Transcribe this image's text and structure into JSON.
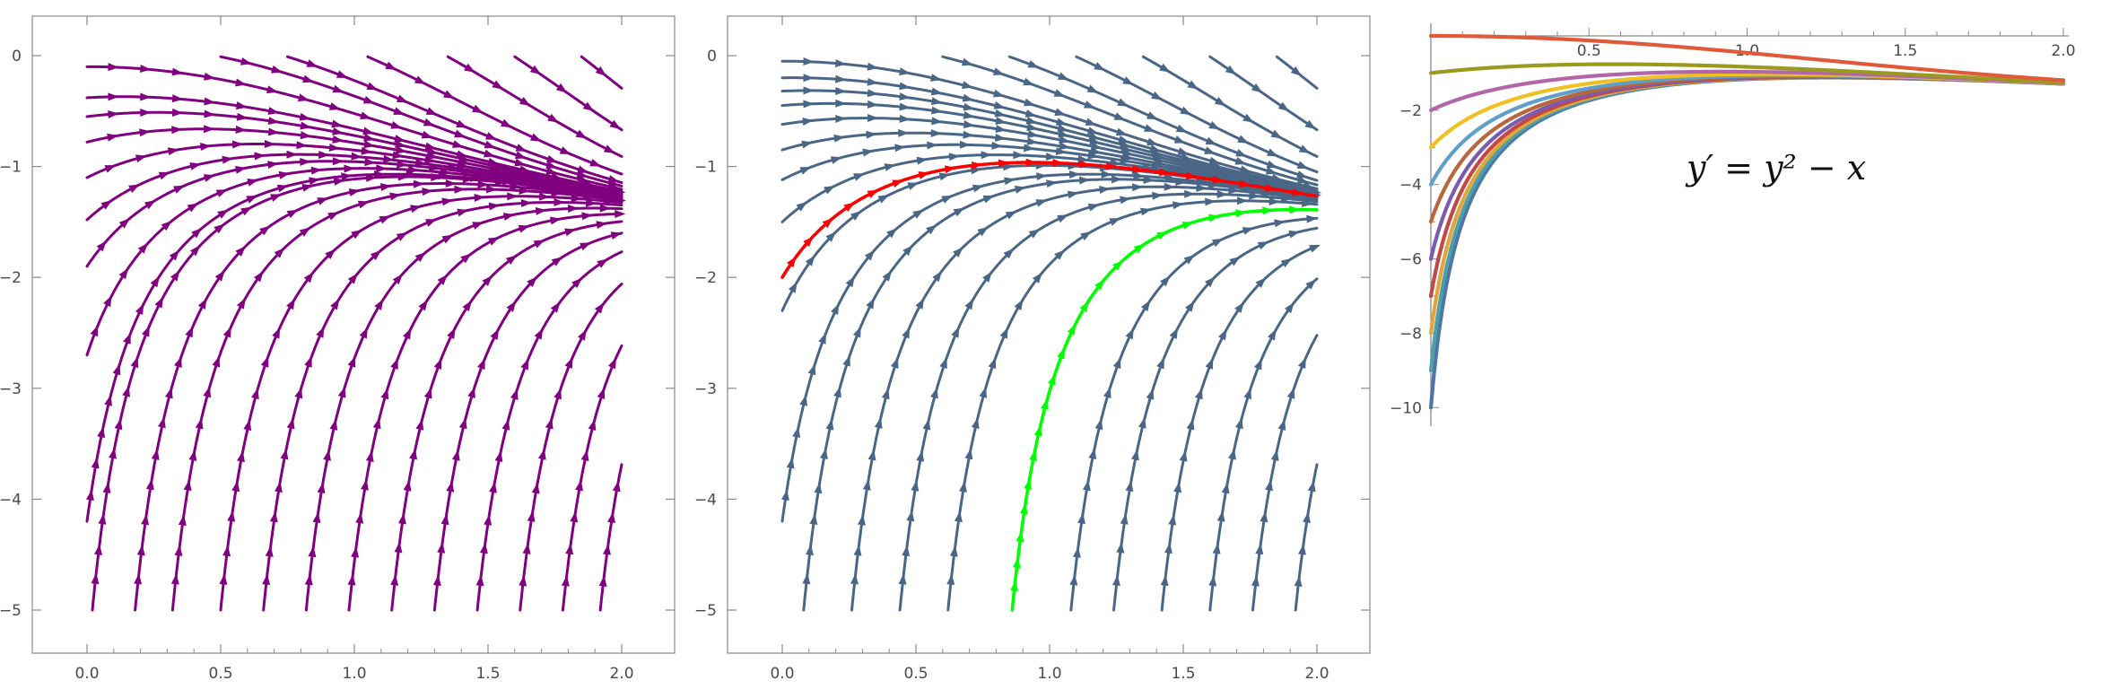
{
  "chart_data": [
    {
      "type": "streamplot",
      "equation": "y' = y^2 - x",
      "xlim": [
        0,
        2
      ],
      "ylim": [
        -5,
        0
      ],
      "x_ticks": [
        "0.0",
        "0.5",
        "1.0",
        "1.5",
        "2.0"
      ],
      "y_ticks": [
        "0",
        "-1",
        "-2",
        "-3",
        "-4",
        "-5"
      ],
      "frame": "boxed",
      "stream_color": "#800080",
      "stream_starts": {
        "left_edge_y0": [
          -0.1,
          -0.38,
          -0.55,
          -0.78,
          -1.1,
          -1.48,
          -1.9,
          -2.7,
          -4.2
        ],
        "bottom_edge_x0": [
          0.02,
          0.18,
          0.32,
          0.5,
          0.66,
          0.82,
          0.98,
          1.14,
          1.3,
          1.46,
          1.62,
          1.78,
          1.92,
          2.0
        ],
        "top_edge_x0": [
          0.5,
          0.75,
          1.05,
          1.35,
          1.6,
          1.85
        ]
      }
    },
    {
      "type": "streamplot",
      "equation": "y' = y^2 - x",
      "xlim": [
        0,
        2
      ],
      "ylim": [
        -5,
        0
      ],
      "x_ticks": [
        "0.0",
        "0.5",
        "1.0",
        "1.5",
        "2.0"
      ],
      "y_ticks": [
        "0",
        "-1",
        "-2",
        "-3",
        "-4",
        "-5"
      ],
      "frame": "boxed",
      "stream_color": "#4a6687",
      "stream_starts": {
        "left_edge_y0": [
          -0.05,
          -0.2,
          -0.32,
          -0.45,
          -0.62,
          -0.85,
          -1.12,
          -1.5,
          -2.3,
          -4.2
        ],
        "bottom_edge_x0": [
          0.08,
          0.26,
          0.44,
          0.62,
          1.08,
          1.24,
          1.42,
          1.6,
          1.76,
          1.92,
          2.0
        ],
        "top_edge_x0": [
          0.6,
          0.85,
          1.1,
          1.35,
          1.6,
          1.85
        ]
      },
      "highlighted_solutions": [
        {
          "color": "#ff0000",
          "x0": 0,
          "y0": -2
        },
        {
          "color": "#00ff00",
          "x0": 0.86,
          "y0": -5
        }
      ]
    },
    {
      "type": "line",
      "equation": "y' = y^2 - x",
      "xlim": [
        0,
        2
      ],
      "ylim": [
        -10.5,
        0
      ],
      "x_ticks": [
        "0.5",
        "1.0",
        "1.5",
        "2.0"
      ],
      "y_ticks": [
        "-2",
        "-4",
        "-6",
        "-8",
        "-10"
      ],
      "frame": "axes-origin",
      "series": [
        {
          "y0": 0,
          "color": "#e05a3a"
        },
        {
          "y0": -1,
          "color": "#9a9a1e"
        },
        {
          "y0": -2,
          "color": "#b066a8"
        },
        {
          "y0": -3,
          "color": "#f0c020"
        },
        {
          "y0": -4,
          "color": "#5f9fc9"
        },
        {
          "y0": -5,
          "color": "#b8663a"
        },
        {
          "y0": -6,
          "color": "#7a5bb0"
        },
        {
          "y0": -7,
          "color": "#c04848"
        },
        {
          "y0": -8,
          "color": "#e2a53a"
        },
        {
          "y0": -9,
          "color": "#4ea0a8"
        },
        {
          "y0": -10,
          "color": "#4d76a6"
        }
      ],
      "annotation": {
        "text": "y′ = y² − x",
        "color": "#111111"
      }
    }
  ]
}
